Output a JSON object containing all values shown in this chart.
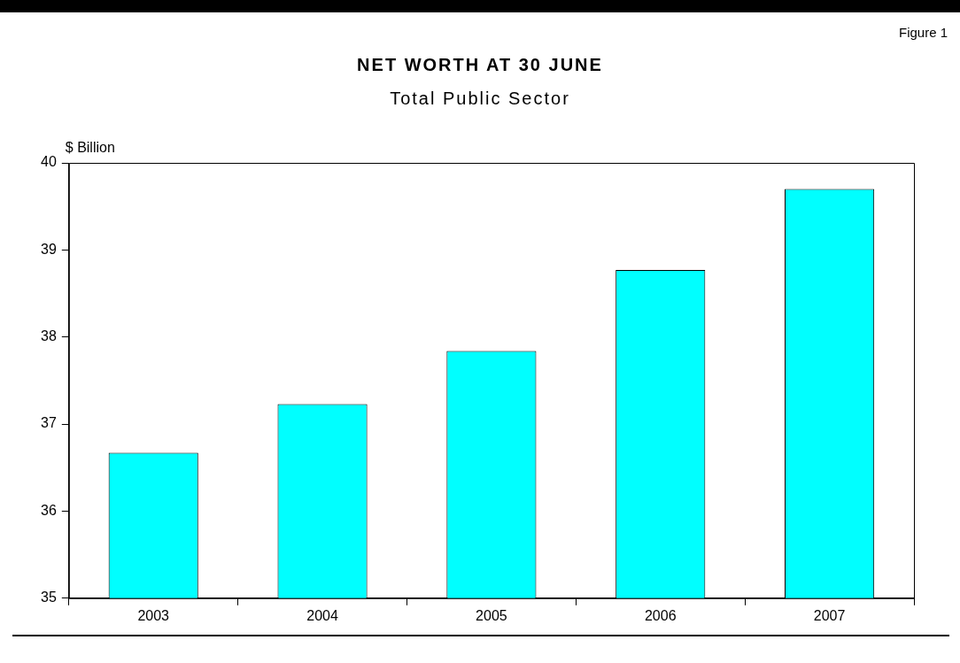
{
  "chart_data": {
    "type": "bar",
    "title": "NET WORTH AT 30 JUNE",
    "subtitle": "Total Public Sector",
    "ylabel": "$ Billion",
    "annotations": [
      "Figure 1"
    ],
    "categories": [
      "2003",
      "2004",
      "2005",
      "2006",
      "2007"
    ],
    "values": [
      36.67,
      37.23,
      37.84,
      38.77,
      39.7
    ],
    "color": "#00ffff",
    "ylim": [
      35,
      40
    ],
    "yticks": [
      35,
      36,
      37,
      38,
      39,
      40
    ],
    "grid": false,
    "legend": false
  }
}
